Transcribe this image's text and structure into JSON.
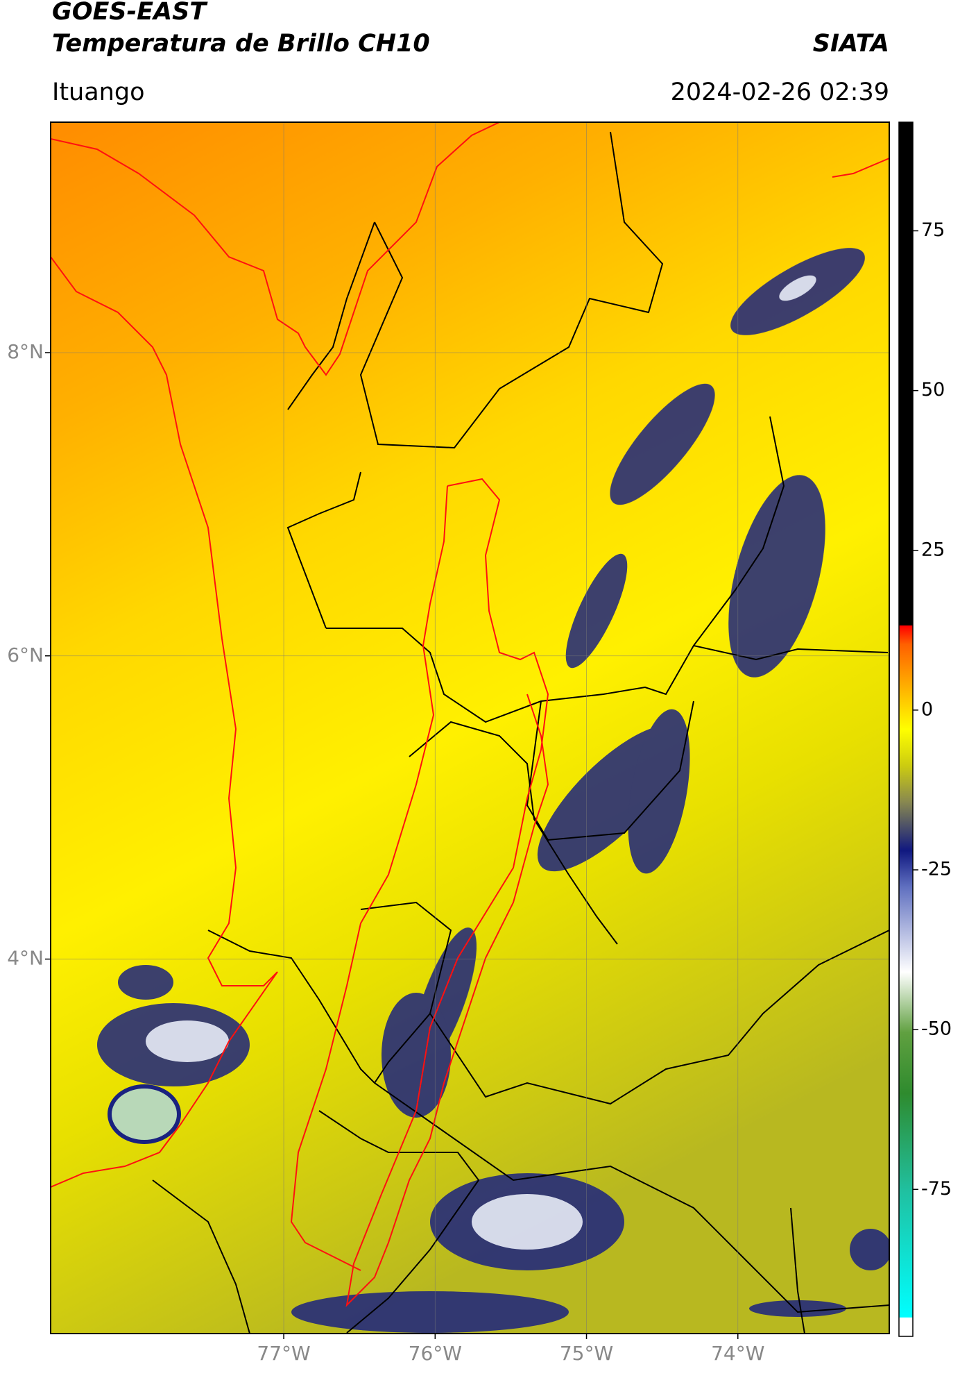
{
  "header": {
    "title_line1": "GOES-EAST",
    "title_line2": "Temperatura de Brillo CH10",
    "source": "SIATA",
    "region": "Ituango",
    "datetime": "2024-02-26 02:39"
  },
  "map": {
    "xlim": [
      -78.54,
      -73.0
    ],
    "ylim": [
      1.53,
      9.52
    ],
    "xticks": [
      {
        "value": -77,
        "label": "77°W"
      },
      {
        "value": -76,
        "label": "76°W"
      },
      {
        "value": -75,
        "label": "75°W"
      },
      {
        "value": -74,
        "label": "74°W"
      }
    ],
    "yticks": [
      {
        "value": 8,
        "label": "8°N"
      },
      {
        "value": 6,
        "label": "6°N"
      },
      {
        "value": 4,
        "label": "4°N"
      }
    ],
    "grid": true
  },
  "colorbar": {
    "lim": [
      -98,
      92
    ],
    "ticks": [
      75,
      50,
      25,
      0,
      -25,
      -50,
      -75
    ]
  }
}
